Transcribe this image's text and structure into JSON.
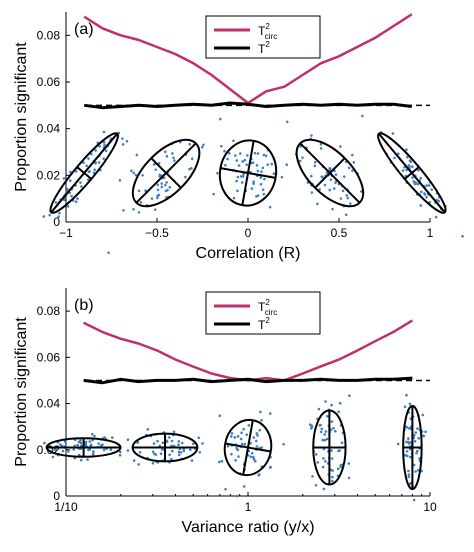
{
  "chart_data": [
    {
      "type": "line",
      "panel_label": "(a)",
      "xlabel": "Correlation (R)",
      "ylabel": "Proportion significant",
      "xlim": [
        -1,
        1
      ],
      "ylim": [
        0,
        0.09
      ],
      "x_ticks": [
        -1,
        -0.5,
        0,
        0.5,
        1
      ],
      "x_tick_labels": [
        "−1",
        "−0.5",
        "0",
        "0.5",
        "1"
      ],
      "y_ticks": [
        0,
        0.02,
        0.04,
        0.06,
        0.08
      ],
      "y_tick_labels": [
        "0",
        "0.02",
        "0.04",
        "0.06",
        "0.08"
      ],
      "x_scale": "linear",
      "reference_line": {
        "y": 0.05,
        "style": "dashed"
      },
      "legend": {
        "position": "top-center",
        "entries": [
          {
            "main": "T",
            "sup": "2",
            "sub": "circ",
            "color": "#c0306e"
          },
          {
            "main": "T",
            "sup": "2",
            "sub": "",
            "color": "#000000"
          }
        ]
      },
      "series": [
        {
          "color": "#c0306e",
          "x": [
            -0.9,
            -0.8,
            -0.7,
            -0.6,
            -0.5,
            -0.4,
            -0.3,
            -0.2,
            -0.1,
            0,
            0.1,
            0.2,
            0.3,
            0.4,
            0.5,
            0.6,
            0.7,
            0.8,
            0.9
          ],
          "y": [
            0.088,
            0.083,
            0.08,
            0.078,
            0.075,
            0.072,
            0.068,
            0.063,
            0.057,
            0.051,
            0.056,
            0.058,
            0.063,
            0.068,
            0.071,
            0.075,
            0.079,
            0.084,
            0.089
          ]
        },
        {
          "color": "#000000",
          "x": [
            -0.9,
            -0.8,
            -0.7,
            -0.6,
            -0.5,
            -0.4,
            -0.3,
            -0.2,
            -0.1,
            0,
            0.1,
            0.2,
            0.3,
            0.4,
            0.5,
            0.6,
            0.7,
            0.8,
            0.9
          ],
          "y": [
            0.05,
            0.049,
            0.0495,
            0.05,
            0.0495,
            0.05,
            0.0505,
            0.05,
            0.051,
            0.0505,
            0.0495,
            0.05,
            0.0505,
            0.05,
            0.0505,
            0.05,
            0.0505,
            0.0505,
            0.0495
          ]
        }
      ],
      "ellipse_glyphs": [
        {
          "x": -0.9,
          "angle_deg": 50,
          "major": 0.022,
          "minor": 0.004
        },
        {
          "x": -0.45,
          "angle_deg": 45,
          "major": 0.018,
          "minor": 0.009
        },
        {
          "x": 0,
          "angle_deg": 80,
          "major": 0.014,
          "minor": 0.012
        },
        {
          "x": 0.45,
          "angle_deg": -45,
          "major": 0.018,
          "minor": 0.009
        },
        {
          "x": 0.9,
          "angle_deg": -50,
          "major": 0.022,
          "minor": 0.004
        }
      ]
    },
    {
      "type": "line",
      "panel_label": "(b)",
      "xlabel": "Variance ratio (y/x)",
      "ylabel": "Proportion significant",
      "xlim": [
        0.1,
        10
      ],
      "ylim": [
        0,
        0.09
      ],
      "x_ticks": [
        0.1,
        1,
        10
      ],
      "x_tick_labels": [
        "1/10",
        "1",
        "10"
      ],
      "y_ticks": [
        0,
        0.02,
        0.04,
        0.06,
        0.08
      ],
      "y_tick_labels": [
        "0",
        "0.02",
        "0.04",
        "0.06",
        "0.08"
      ],
      "x_scale": "log",
      "reference_line": {
        "y": 0.05,
        "style": "dashed"
      },
      "legend": {
        "position": "top-center",
        "entries": [
          {
            "main": "T",
            "sup": "2",
            "sub": "circ",
            "color": "#c0306e"
          },
          {
            "main": "T",
            "sup": "2",
            "sub": "",
            "color": "#000000"
          }
        ]
      },
      "series": [
        {
          "color": "#c0306e",
          "x": [
            0.125,
            0.158,
            0.2,
            0.25,
            0.316,
            0.4,
            0.5,
            0.63,
            0.8,
            1,
            1.26,
            1.58,
            2,
            2.5,
            3.16,
            4,
            5,
            6.3,
            8
          ],
          "y": [
            0.075,
            0.071,
            0.068,
            0.066,
            0.063,
            0.059,
            0.056,
            0.053,
            0.051,
            0.05,
            0.051,
            0.05,
            0.053,
            0.056,
            0.059,
            0.063,
            0.067,
            0.071,
            0.076
          ]
        },
        {
          "color": "#000000",
          "x": [
            0.125,
            0.158,
            0.2,
            0.25,
            0.316,
            0.4,
            0.5,
            0.63,
            0.8,
            1,
            1.26,
            1.58,
            2,
            2.5,
            3.16,
            4,
            5,
            6.3,
            8
          ],
          "y": [
            0.05,
            0.049,
            0.0505,
            0.0495,
            0.05,
            0.05,
            0.0505,
            0.0495,
            0.05,
            0.0505,
            0.0495,
            0.05,
            0.05,
            0.0505,
            0.05,
            0.05,
            0.0505,
            0.0505,
            0.051
          ]
        }
      ],
      "ellipse_glyphs": [
        {
          "x": 0.125,
          "angle_deg": 0,
          "major": 0.016,
          "minor": 0.004
        },
        {
          "x": 0.35,
          "angle_deg": 0,
          "major": 0.014,
          "minor": 0.006
        },
        {
          "x": 1,
          "angle_deg": 80,
          "major": 0.012,
          "minor": 0.01
        },
        {
          "x": 2.8,
          "angle_deg": 90,
          "major": 0.016,
          "minor": 0.007
        },
        {
          "x": 8,
          "angle_deg": 90,
          "major": 0.018,
          "minor": 0.004
        }
      ]
    }
  ],
  "colors": {
    "tcirc": "#c0306e",
    "t2": "#000000",
    "points": "#3a7fc4"
  }
}
